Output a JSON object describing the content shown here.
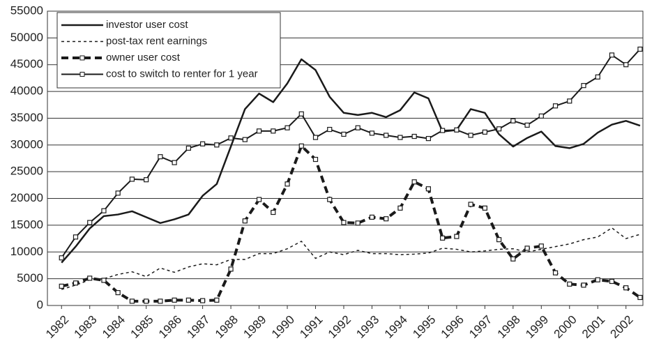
{
  "chart_data": {
    "type": "line",
    "x": [
      1982,
      1982.5,
      1983,
      1983.5,
      1984,
      1984.5,
      1985,
      1985.5,
      1986,
      1986.5,
      1987,
      1987.5,
      1988,
      1988.5,
      1989,
      1989.5,
      1990,
      1990.5,
      1991,
      1991.5,
      1992,
      1992.5,
      1993,
      1993.5,
      1994,
      1994.5,
      1995,
      1995.5,
      1996,
      1996.5,
      1997,
      1997.5,
      1998,
      1998.5,
      1999,
      1999.5,
      2000,
      2000.5,
      2001,
      2001.5,
      2002,
      2002.5
    ],
    "xlim": [
      1981.5,
      2002.6
    ],
    "xticks": [
      1982,
      1983,
      1984,
      1985,
      1986,
      1987,
      1988,
      1989,
      1990,
      1991,
      1992,
      1993,
      1994,
      1995,
      1996,
      1997,
      1998,
      1999,
      2000,
      2001,
      2002
    ],
    "ylim": [
      0,
      55000
    ],
    "yticks": [
      0,
      5000,
      10000,
      15000,
      20000,
      25000,
      30000,
      35000,
      40000,
      45000,
      50000,
      55000
    ],
    "grid": true,
    "legend": "top-left",
    "series": [
      {
        "name": "investor user cost",
        "color": "#1a1a1a",
        "style": "solid",
        "width": 2.5,
        "markers": false,
        "values": [
          8000,
          11000,
          14400,
          16700,
          17000,
          17600,
          16500,
          15400,
          16100,
          17000,
          20500,
          22700,
          29700,
          36700,
          39600,
          38000,
          41500,
          46000,
          44000,
          39000,
          36000,
          35600,
          36000,
          35200,
          36500,
          39800,
          38700,
          32500,
          32800,
          36700,
          36000,
          32000,
          29700,
          31300,
          32500,
          29800,
          29400,
          30200,
          32300,
          33800,
          34500,
          33600
        ]
      },
      {
        "name": "post-tax rent earnings",
        "color": "#1a1a1a",
        "style": "dotted",
        "width": 1.5,
        "markers": false,
        "values": [
          3000,
          3800,
          4800,
          5000,
          5800,
          6300,
          5400,
          7000,
          6200,
          7200,
          7800,
          7600,
          8600,
          8600,
          9700,
          9700,
          10600,
          12000,
          8800,
          10000,
          9500,
          10300,
          9700,
          9700,
          9500,
          9600,
          9800,
          10700,
          10500,
          10000,
          10200,
          10500,
          10600,
          10000,
          10500,
          11000,
          11500,
          12300,
          12800,
          14500,
          12500,
          13300
        ]
      },
      {
        "name": "owner user cost",
        "color": "#1a1a1a",
        "style": "dashed",
        "width": 4,
        "markers": true,
        "values": [
          3600,
          4200,
          5100,
          4700,
          2400,
          800,
          800,
          800,
          1000,
          1000,
          900,
          1000,
          6800,
          15800,
          19800,
          17400,
          22700,
          29800,
          27300,
          19800,
          15500,
          15400,
          16500,
          16200,
          18200,
          23100,
          21800,
          12600,
          12900,
          18900,
          18200,
          12300,
          8700,
          10700,
          11100,
          6100,
          4000,
          3800,
          4800,
          4500,
          3300,
          1500
        ]
      },
      {
        "name": "cost to switch to renter for 1 year",
        "color": "#1a1a1a",
        "style": "solid",
        "width": 2,
        "markers": true,
        "values": [
          8900,
          12800,
          15500,
          17700,
          21000,
          23600,
          23500,
          27800,
          26700,
          29400,
          30200,
          30000,
          31300,
          31000,
          32600,
          32600,
          33200,
          35800,
          31400,
          32900,
          32000,
          33200,
          32200,
          31800,
          31400,
          31600,
          31200,
          32700,
          32800,
          31800,
          32400,
          33000,
          34500,
          33700,
          35400,
          37300,
          38200,
          41100,
          42700,
          46800,
          45000,
          47900
        ]
      }
    ]
  }
}
